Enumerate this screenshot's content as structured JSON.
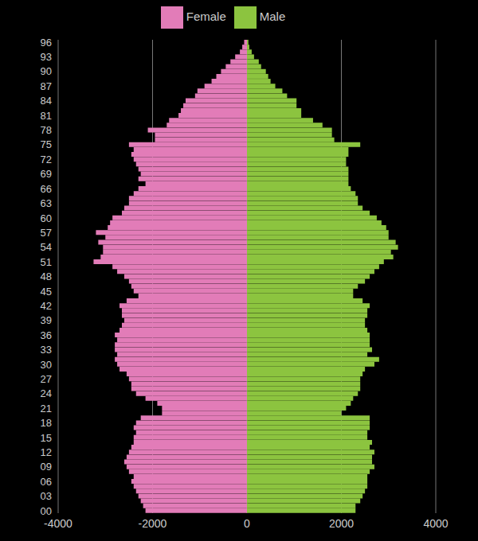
{
  "chart_data": {
    "type": "bar",
    "orientation": "horizontal",
    "stacked": true,
    "grid": true,
    "legend": "top",
    "categories": [
      "00",
      null,
      null,
      "03",
      null,
      null,
      "06",
      null,
      null,
      "09",
      null,
      null,
      "12",
      null,
      null,
      "15",
      null,
      null,
      "18",
      null,
      null,
      "21",
      null,
      null,
      "24",
      null,
      null,
      "27",
      null,
      null,
      "30",
      null,
      null,
      "33",
      null,
      null,
      "36",
      null,
      null,
      "39",
      null,
      null,
      "42",
      null,
      null,
      "45",
      null,
      null,
      "48",
      null,
      null,
      "51",
      null,
      null,
      "54",
      null,
      null,
      "57",
      null,
      null,
      "60",
      null,
      null,
      "63",
      null,
      null,
      "66",
      null,
      null,
      "69",
      null,
      null,
      "72",
      null,
      null,
      "75",
      null,
      null,
      "78",
      null,
      null,
      "81",
      null,
      null,
      "84",
      null,
      null,
      "87",
      null,
      null,
      "90",
      null,
      null,
      "93",
      null,
      null,
      "96"
    ],
    "series": [
      {
        "name": "Female",
        "color": "#e27cb8",
        "values": [
          -2150,
          -2200,
          -2250,
          -2300,
          -2350,
          -2400,
          -2450,
          -2400,
          -2500,
          -2550,
          -2600,
          -2550,
          -2500,
          -2450,
          -2400,
          -2400,
          -2350,
          -2400,
          -2350,
          -2250,
          -1800,
          -1800,
          -1900,
          -2150,
          -2350,
          -2450,
          -2450,
          -2500,
          -2550,
          -2700,
          -2750,
          -2800,
          -2750,
          -2800,
          -2800,
          -2750,
          -2800,
          -2700,
          -2650,
          -2600,
          -2650,
          -2650,
          -2700,
          -2550,
          -2300,
          -2400,
          -2450,
          -2500,
          -2600,
          -2750,
          -2850,
          -3250,
          -3100,
          -3050,
          -3050,
          -3150,
          -3000,
          -3200,
          -2950,
          -2900,
          -2850,
          -2650,
          -2600,
          -2500,
          -2500,
          -2400,
          -2300,
          -2150,
          -2300,
          -2250,
          -2300,
          -2350,
          -2400,
          -2450,
          -2400,
          -2500,
          -1950,
          -1950,
          -2100,
          -1700,
          -1650,
          -1450,
          -1400,
          -1350,
          -1300,
          -1100,
          -1050,
          -900,
          -750,
          -650,
          -550,
          -450,
          -350,
          -250,
          -150,
          -100,
          -60
        ]
      },
      {
        "name": "Male",
        "color": "#8cc43f",
        "values": [
          2300,
          2300,
          2400,
          2450,
          2500,
          2550,
          2550,
          2550,
          2600,
          2700,
          2650,
          2650,
          2700,
          2600,
          2650,
          2550,
          2550,
          2600,
          2600,
          2600,
          2000,
          2100,
          2200,
          2250,
          2350,
          2400,
          2400,
          2400,
          2450,
          2500,
          2700,
          2800,
          2550,
          2650,
          2600,
          2600,
          2600,
          2550,
          2500,
          2500,
          2550,
          2550,
          2600,
          2450,
          2250,
          2250,
          2350,
          2500,
          2600,
          2700,
          2800,
          2900,
          3100,
          3050,
          3200,
          3150,
          3000,
          3000,
          2950,
          2850,
          2750,
          2600,
          2450,
          2350,
          2350,
          2300,
          2200,
          2150,
          2150,
          2150,
          2150,
          2100,
          2100,
          2150,
          2150,
          2400,
          1850,
          1800,
          1800,
          1600,
          1400,
          1150,
          1150,
          1050,
          1050,
          850,
          750,
          600,
          500,
          450,
          400,
          300,
          250,
          150,
          100,
          50,
          30
        ]
      }
    ],
    "xlim": [
      -4000,
      4000
    ],
    "xticks": [
      -4000,
      -2000,
      0,
      2000,
      4000
    ]
  }
}
